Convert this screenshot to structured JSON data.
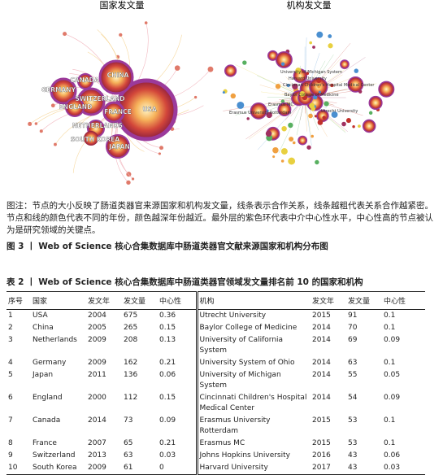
{
  "figure": {
    "panels": [
      {
        "title": "国家发文量",
        "labels": [
          "CHINA",
          "CANADA",
          "GERMANY",
          "SWITZERLAND",
          "ENGLAND",
          "USA",
          "FRANCE",
          "NETHERLANDS",
          "SOUTH KOREA",
          "JAPAN"
        ]
      },
      {
        "title": "机构发文量",
        "labels": [
          "University of Michigan System",
          "Harvard University",
          "Cincinnati Children's Hospital Medical Center",
          "Baylor College of Medicine",
          "Utrecht University",
          "Erasmus University Rotterdam",
          "Erasmus MC"
        ]
      }
    ],
    "caption": "图注：节点的大小反映了肠道类器官来源国家和机构发文量，线条表示合作关系，线条越粗代表关系合作越紧密。节点和线的颜色代表不同的年份，颜色越深年份越近。最外层的紫色环代表中介中心性水平，中心性高的节点被认为是研究领域的关键点。",
    "title": "图 3 丨 Web of Science 核心合集数据库中肠道类器官文献来源国家和机构分布图"
  },
  "table": {
    "title": "表 2 丨 Web of Science 核心合集数据库中肠道类器官领域发文量排名前 10 的国家和机构",
    "header": [
      "序号",
      "国家",
      "发文年",
      "发文量",
      "中心性",
      "机构",
      "发文年",
      "发文量",
      "中心性"
    ],
    "rows": [
      [
        1,
        "USA",
        2004,
        675,
        0.36,
        "Utrecht University",
        2015,
        91,
        0.1
      ],
      [
        2,
        "China",
        2005,
        265,
        0.15,
        "Baylor College of Medicine",
        2014,
        70,
        0.1
      ],
      [
        3,
        "Netherlands",
        2009,
        208,
        0.13,
        "University of California System",
        2014,
        69,
        0.09
      ],
      [
        4,
        "Germany",
        2009,
        162,
        0.21,
        "University System of Ohio",
        2014,
        63,
        0.1
      ],
      [
        5,
        "Japan",
        2011,
        136,
        0.06,
        "University of Michigan System",
        2014,
        55,
        0.05
      ],
      [
        6,
        "England",
        2000,
        112,
        0.15,
        "Cincinnati Children's Hospital Medical Center",
        2014,
        54,
        0.09
      ],
      [
        7,
        "Canada",
        2014,
        73,
        0.09,
        "Erasmus University Rotterdam",
        2015,
        53,
        0.1
      ],
      [
        8,
        "France",
        2007,
        65,
        0.21,
        "Erasmus MC",
        2015,
        53,
        0.1
      ],
      [
        9,
        "Switzerland",
        2013,
        63,
        0.03,
        "Johns Hopkins University",
        2016,
        43,
        0.06
      ],
      [
        10,
        "South Korea",
        2009,
        61,
        0,
        "Harvard University",
        2017,
        43,
        0.03
      ]
    ]
  }
}
